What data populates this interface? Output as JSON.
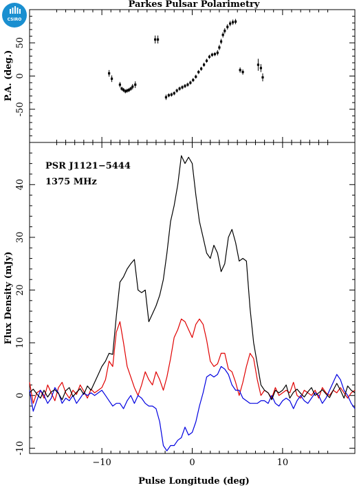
{
  "title": "Parkes Pulsar Polarimetry",
  "logo": {
    "text": "CSIRO",
    "color": "#1a8fd0"
  },
  "chart_data": [
    {
      "type": "scatter",
      "panel": "pa",
      "ylabel": "P.A. (deg.)",
      "xlim": [
        -18,
        18
      ],
      "ylim": [
        -100,
        100
      ],
      "yticks": [
        -50,
        0,
        50
      ],
      "errorbars": true,
      "points": [
        [
          -9.2,
          4,
          5
        ],
        [
          -8.9,
          -4,
          5
        ],
        [
          -8.0,
          -13,
          4
        ],
        [
          -7.8,
          -19,
          3
        ],
        [
          -7.6,
          -21,
          3
        ],
        [
          -7.4,
          -23,
          3
        ],
        [
          -7.2,
          -22,
          3
        ],
        [
          -7.0,
          -21,
          3
        ],
        [
          -6.8,
          -19,
          3
        ],
        [
          -6.6,
          -16,
          4
        ],
        [
          -6.3,
          -13,
          5
        ],
        [
          -4.1,
          55,
          6
        ],
        [
          -3.8,
          55,
          6
        ],
        [
          -2.9,
          -32,
          4
        ],
        [
          -2.6,
          -29,
          3
        ],
        [
          -2.3,
          -28,
          3
        ],
        [
          -2.0,
          -26,
          3
        ],
        [
          -1.7,
          -22,
          3
        ],
        [
          -1.4,
          -19,
          3
        ],
        [
          -1.1,
          -17,
          3
        ],
        [
          -0.8,
          -15,
          3
        ],
        [
          -0.5,
          -13,
          3
        ],
        [
          -0.2,
          -10,
          3
        ],
        [
          0.1,
          -6,
          3
        ],
        [
          0.4,
          -1,
          3
        ],
        [
          0.7,
          6,
          3
        ],
        [
          1.0,
          11,
          3
        ],
        [
          1.3,
          17,
          3
        ],
        [
          1.6,
          23,
          3
        ],
        [
          1.9,
          29,
          3
        ],
        [
          2.2,
          32,
          3
        ],
        [
          2.5,
          33,
          3
        ],
        [
          2.8,
          35,
          4
        ],
        [
          3.0,
          43,
          4
        ],
        [
          3.2,
          52,
          4
        ],
        [
          3.4,
          62,
          4
        ],
        [
          3.6,
          68,
          4
        ],
        [
          3.9,
          74,
          4
        ],
        [
          4.2,
          79,
          4
        ],
        [
          4.5,
          81,
          4
        ],
        [
          4.8,
          82,
          4
        ],
        [
          5.3,
          9,
          4
        ],
        [
          5.6,
          6,
          4
        ],
        [
          7.3,
          17,
          9
        ],
        [
          7.6,
          12,
          6
        ],
        [
          7.8,
          -2,
          6
        ]
      ]
    },
    {
      "type": "line",
      "panel": "profile",
      "annotations": [
        "PSR J1121−5444",
        "1375 MHz"
      ],
      "xlabel": "Pulse Longitude (deg)",
      "ylabel": "Flux Density (mJy)",
      "xlim": [
        -18,
        18
      ],
      "ylim": [
        -11,
        48
      ],
      "xticks": [
        -10,
        0,
        10
      ],
      "yticks": [
        -10,
        0,
        10,
        20,
        30,
        40
      ],
      "series": [
        {
          "color": "#000000",
          "x": [
            -18,
            -17.6,
            -17.2,
            -16.8,
            -16.4,
            -16,
            -15.6,
            -15.2,
            -14.8,
            -14.4,
            -14,
            -13.6,
            -13.2,
            -12.8,
            -12.4,
            -12,
            -11.6,
            -11.2,
            -10.8,
            -10.4,
            -10,
            -9.6,
            -9.2,
            -8.8,
            -8.4,
            -8,
            -7.6,
            -7.2,
            -6.8,
            -6.4,
            -6,
            -5.6,
            -5.2,
            -4.8,
            -4.4,
            -4,
            -3.6,
            -3.2,
            -2.8,
            -2.4,
            -2,
            -1.6,
            -1.2,
            -0.8,
            -0.4,
            0,
            0.4,
            0.8,
            1.2,
            1.6,
            2,
            2.4,
            2.8,
            3.2,
            3.6,
            4,
            4.4,
            4.8,
            5.2,
            5.6,
            6,
            6.4,
            6.8,
            7.2,
            7.6,
            8,
            8.4,
            8.8,
            9.2,
            9.6,
            10,
            10.4,
            10.8,
            11.2,
            11.6,
            12,
            12.4,
            12.8,
            13.2,
            13.6,
            14,
            14.4,
            14.8,
            15.2,
            15.6,
            16,
            16.4,
            16.8,
            17.2,
            17.6,
            18
          ],
          "values": [
            0.5,
            1.2,
            0.3,
            -0.5,
            1.0,
            -0.3,
            0.7,
            1.1,
            0.4,
            -0.8,
            0.9,
            1.5,
            -0.2,
            0.6,
            1.3,
            0.2,
            1.8,
            1.0,
            2.5,
            4.0,
            5.5,
            6.5,
            8.0,
            7.8,
            15.0,
            21.5,
            22.5,
            24.0,
            25.0,
            25.8,
            20.0,
            19.5,
            20.0,
            14.0,
            15.5,
            17.0,
            19.0,
            22.0,
            27.0,
            33.0,
            36.0,
            40.0,
            45.5,
            44.0,
            45.2,
            44.0,
            38.0,
            33.0,
            30.0,
            27.0,
            26.0,
            28.5,
            27.0,
            23.5,
            25.0,
            30.0,
            31.5,
            29.0,
            25.5,
            26.0,
            25.5,
            16.5,
            10.0,
            6.0,
            2.0,
            1.0,
            0.5,
            -0.8,
            1.0,
            0.5,
            1.0,
            2.0,
            -0.5,
            0.6,
            1.2,
            0.4,
            -0.3,
            0.7,
            1.5,
            0.0,
            0.5,
            1.1,
            0.3,
            -0.4,
            1.0,
            2.3,
            1.0,
            -0.5,
            1.8,
            1.0,
            0.5
          ]
        },
        {
          "color": "#e00000",
          "x": [
            -18,
            -17.6,
            -17.2,
            -16.8,
            -16.4,
            -16,
            -15.6,
            -15.2,
            -14.8,
            -14.4,
            -14,
            -13.6,
            -13.2,
            -12.8,
            -12.4,
            -12,
            -11.6,
            -11.2,
            -10.8,
            -10.4,
            -10,
            -9.6,
            -9.2,
            -8.8,
            -8.4,
            -8,
            -7.6,
            -7.2,
            -6.8,
            -6.4,
            -6,
            -5.6,
            -5.2,
            -4.8,
            -4.4,
            -4,
            -3.6,
            -3.2,
            -2.8,
            -2.4,
            -2,
            -1.6,
            -1.2,
            -0.8,
            -0.4,
            0,
            0.4,
            0.8,
            1.2,
            1.6,
            2,
            2.4,
            2.8,
            3.2,
            3.6,
            4,
            4.4,
            4.8,
            5.2,
            5.6,
            6,
            6.4,
            6.8,
            7.2,
            7.6,
            8,
            8.4,
            8.8,
            9.2,
            9.6,
            10,
            10.4,
            10.8,
            11.2,
            11.6,
            12,
            12.4,
            12.8,
            13.2,
            13.6,
            14,
            14.4,
            14.8,
            15.2,
            15.6,
            16,
            16.4,
            16.8,
            17.2,
            17.6,
            18
          ],
          "values": [
            2.5,
            -1.5,
            0.5,
            1.0,
            -0.5,
            2.0,
            0.5,
            -1.0,
            1.5,
            2.5,
            0.5,
            -0.5,
            1.0,
            0.2,
            2.0,
            0.8,
            -0.5,
            1.2,
            0.5,
            1.0,
            1.5,
            3.0,
            6.5,
            5.5,
            12.0,
            14.0,
            10.0,
            5.5,
            3.5,
            1.5,
            0.0,
            2.0,
            4.5,
            3.0,
            2.0,
            4.5,
            3.0,
            1.0,
            3.5,
            7.0,
            11.0,
            12.5,
            14.5,
            14.0,
            12.5,
            11.0,
            13.5,
            14.5,
            13.5,
            10.5,
            6.5,
            5.5,
            6.0,
            8.0,
            8.0,
            5.0,
            4.5,
            2.5,
            0.0,
            2.5,
            5.5,
            8.0,
            7.0,
            3.0,
            0.0,
            1.0,
            0.5,
            -0.5,
            1.5,
            0.0,
            0.5,
            1.0,
            0.5,
            2.5,
            0.0,
            -0.5,
            1.0,
            0.5,
            0.0,
            1.0,
            -0.5,
            1.5,
            0.5,
            0.0,
            1.0,
            0.5,
            1.5,
            0.5,
            -0.5,
            0.5,
            1.0
          ]
        },
        {
          "color": "#0000e0",
          "x": [
            -18,
            -17.6,
            -17.2,
            -16.8,
            -16.4,
            -16,
            -15.6,
            -15.2,
            -14.8,
            -14.4,
            -14,
            -13.6,
            -13.2,
            -12.8,
            -12.4,
            -12,
            -11.6,
            -11.2,
            -10.8,
            -10.4,
            -10,
            -9.6,
            -9.2,
            -8.8,
            -8.4,
            -8,
            -7.6,
            -7.2,
            -6.8,
            -6.4,
            -6,
            -5.6,
            -5.2,
            -4.8,
            -4.4,
            -4,
            -3.6,
            -3.2,
            -2.8,
            -2.4,
            -2,
            -1.6,
            -1.2,
            -0.8,
            -0.4,
            0,
            0.4,
            0.8,
            1.2,
            1.6,
            2,
            2.4,
            2.8,
            3.2,
            3.6,
            4,
            4.4,
            4.8,
            5.2,
            5.6,
            6,
            6.4,
            6.8,
            7.2,
            7.6,
            8,
            8.4,
            8.8,
            9.2,
            9.6,
            10,
            10.4,
            10.8,
            11.2,
            11.6,
            12,
            12.4,
            12.8,
            13.2,
            13.6,
            14,
            14.4,
            14.8,
            15.2,
            15.6,
            16,
            16.4,
            16.8,
            17.2,
            17.6,
            18
          ],
          "values": [
            1.0,
            -3.0,
            -1.0,
            1.0,
            0.0,
            -1.5,
            -0.5,
            1.5,
            0.5,
            -1.5,
            -0.5,
            -1.0,
            0.0,
            -1.5,
            -0.5,
            0.5,
            0.0,
            0.5,
            0.0,
            0.5,
            1.0,
            0.0,
            -1.0,
            -2.0,
            -1.5,
            -1.5,
            -2.5,
            -1.0,
            0.0,
            -1.5,
            0.0,
            -0.5,
            -1.5,
            -2.0,
            -2.0,
            -2.5,
            -5.0,
            -9.5,
            -10.5,
            -9.5,
            -9.5,
            -8.5,
            -8.0,
            -6.0,
            -7.5,
            -7.0,
            -5.0,
            -2.0,
            0.5,
            3.5,
            4.0,
            3.5,
            4.0,
            5.5,
            5.0,
            4.0,
            2.0,
            1.0,
            1.0,
            -0.5,
            -1.0,
            -1.5,
            -1.5,
            -1.5,
            -1.0,
            -1.0,
            -1.5,
            0.0,
            -1.5,
            -2.0,
            -1.0,
            -0.5,
            -1.0,
            -2.5,
            -1.0,
            0.0,
            -1.0,
            -1.5,
            -0.5,
            0.5,
            0.0,
            -1.5,
            -0.5,
            1.0,
            2.5,
            4.0,
            3.0,
            1.0,
            0.0,
            -1.5,
            -2.5
          ]
        }
      ]
    }
  ]
}
